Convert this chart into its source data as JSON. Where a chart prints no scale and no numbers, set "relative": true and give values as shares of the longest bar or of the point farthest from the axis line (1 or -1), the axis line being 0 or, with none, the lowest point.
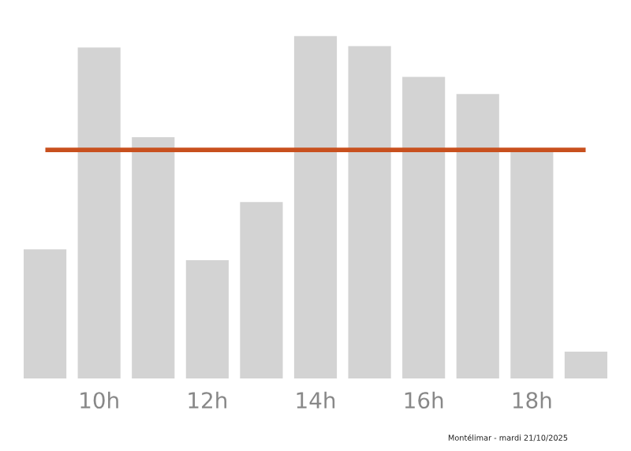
{
  "chart_data": {
    "type": "bar",
    "relative": true,
    "categories": [
      null,
      "10h",
      null,
      "12h",
      null,
      "14h",
      null,
      "16h",
      null,
      "18h",
      null
    ],
    "values": [
      0.377,
      0.966,
      0.704,
      0.345,
      0.515,
      1,
      0.97,
      0.88,
      0.83,
      0.667,
      0.078
    ],
    "color": "#d3d3d3",
    "ref_lines": [
      {
        "axis": "y",
        "value": 0.667,
        "color": "#c8501e",
        "line_style": "solid"
      }
    ],
    "annotations": [
      "Montélimar - mardi 21/10/2025"
    ],
    "grid": false,
    "legend": false
  }
}
